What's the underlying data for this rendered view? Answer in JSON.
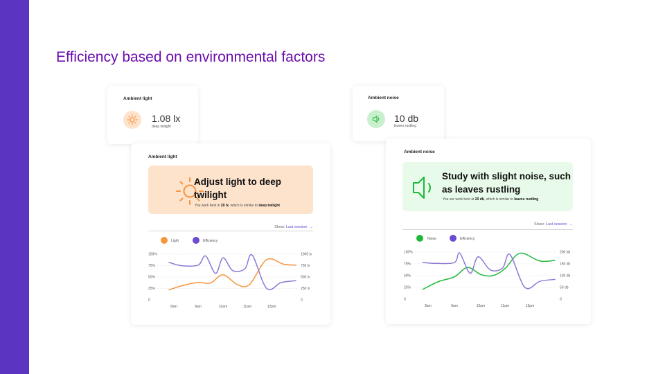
{
  "colors": {
    "sidebar": "#5b35c1",
    "title": "#6a0dad",
    "light_orange": "#f7943e",
    "light_bg": "#fde3cc",
    "noise_green": "#1fb83a",
    "noise_bg": "#e8fae9",
    "efficiency_purple": "#8e79d6",
    "legend_purple": "#6a4bd1"
  },
  "slide_title": "Efficiency based on environmental factors",
  "light_widget": {
    "label": "Ambient light",
    "icon": "sun-icon",
    "value": "1.08 lx",
    "sub": "deep twilight"
  },
  "noise_widget": {
    "label": "Ambient noise",
    "icon": "speaker-icon",
    "value": "10 db",
    "sub": "leaves rustling"
  },
  "light_panel": {
    "label": "Ambient light",
    "banner_title": "Adjust light to deep twilight",
    "desc_pre": "You work best in ",
    "desc_bold1": "20 lx",
    "desc_mid": ", which is similar to ",
    "desc_bold2": "deep twilight",
    "show_label": "Show:",
    "show_value": "Last session",
    "show_arrow": "→",
    "legend": [
      "Light",
      "Efficiency"
    ]
  },
  "noise_panel": {
    "label": "Ambient noise",
    "banner_title": "Study with slight noise, such as leaves rustling",
    "desc_pre": "You are work best at ",
    "desc_bold1": "20 db",
    "desc_mid": ", which is similar to ",
    "desc_bold2": "leaves rustling",
    "show_label": "Show:",
    "show_value": "Last session",
    "show_arrow": "→",
    "legend": [
      "Noise",
      "Efficiency"
    ]
  },
  "chart_data": [
    {
      "type": "line",
      "x": [
        "8am",
        "9am",
        "10am",
        "11am",
        "12pm"
      ],
      "y_left_ticks": [
        "100%",
        "75%",
        "50%",
        "25%",
        "0"
      ],
      "y_right_ticks": [
        "1000 lx",
        "750 lx",
        "500 lx",
        "250 lx",
        "0"
      ],
      "ylim_left": [
        0,
        100
      ],
      "ylim_right": [
        0,
        1000
      ],
      "grid": "dashed",
      "series": [
        {
          "name": "Light",
          "axis": "right",
          "color": "#f7943e",
          "values": [
            {
              "x": 7.8,
              "y": 220
            },
            {
              "x": 8.4,
              "y": 320
            },
            {
              "x": 9,
              "y": 380
            },
            {
              "x": 9.5,
              "y": 370
            },
            {
              "x": 10,
              "y": 550
            },
            {
              "x": 10.6,
              "y": 330
            },
            {
              "x": 11.1,
              "y": 340
            },
            {
              "x": 11.8,
              "y": 880
            },
            {
              "x": 12.5,
              "y": 780
            },
            {
              "x": 13,
              "y": 760
            }
          ]
        },
        {
          "name": "Efficiency",
          "axis": "left",
          "color": "#8e79d6",
          "values": [
            {
              "x": 7.8,
              "y": 82
            },
            {
              "x": 8.3,
              "y": 75
            },
            {
              "x": 9,
              "y": 76
            },
            {
              "x": 9.3,
              "y": 96
            },
            {
              "x": 9.7,
              "y": 58
            },
            {
              "x": 10,
              "y": 92
            },
            {
              "x": 10.4,
              "y": 64
            },
            {
              "x": 10.9,
              "y": 68
            },
            {
              "x": 11.2,
              "y": 98
            },
            {
              "x": 11.8,
              "y": 25
            },
            {
              "x": 12.4,
              "y": 38
            },
            {
              "x": 13,
              "y": 42
            }
          ]
        }
      ]
    },
    {
      "type": "line",
      "x": [
        "8am",
        "9am",
        "10am",
        "11am",
        "12pm"
      ],
      "y_left_ticks": [
        "100%",
        "75%",
        "50%",
        "25%",
        "0"
      ],
      "y_right_ticks": [
        "200 db",
        "150 db",
        "100 db",
        "50 db",
        "0"
      ],
      "ylim_left": [
        0,
        100
      ],
      "ylim_right": [
        0,
        200
      ],
      "grid": "dashed",
      "series": [
        {
          "name": "Noise",
          "axis": "right",
          "color": "#1fb83a",
          "values": [
            {
              "x": 7.8,
              "y": 42
            },
            {
              "x": 8.4,
              "y": 75
            },
            {
              "x": 9,
              "y": 95
            },
            {
              "x": 9.5,
              "y": 135
            },
            {
              "x": 10,
              "y": 105
            },
            {
              "x": 10.5,
              "y": 100
            },
            {
              "x": 11,
              "y": 130
            },
            {
              "x": 11.6,
              "y": 195
            },
            {
              "x": 12.4,
              "y": 162
            },
            {
              "x": 13,
              "y": 165
            }
          ]
        },
        {
          "name": "Efficiency",
          "axis": "left",
          "color": "#8e79d6",
          "values": [
            {
              "x": 7.8,
              "y": 78
            },
            {
              "x": 8.3,
              "y": 76
            },
            {
              "x": 9,
              "y": 78
            },
            {
              "x": 9.2,
              "y": 98
            },
            {
              "x": 9.6,
              "y": 55
            },
            {
              "x": 9.9,
              "y": 90
            },
            {
              "x": 10.4,
              "y": 62
            },
            {
              "x": 10.9,
              "y": 66
            },
            {
              "x": 11.2,
              "y": 95
            },
            {
              "x": 11.8,
              "y": 25
            },
            {
              "x": 12.4,
              "y": 38
            },
            {
              "x": 13,
              "y": 42
            }
          ]
        }
      ]
    }
  ]
}
